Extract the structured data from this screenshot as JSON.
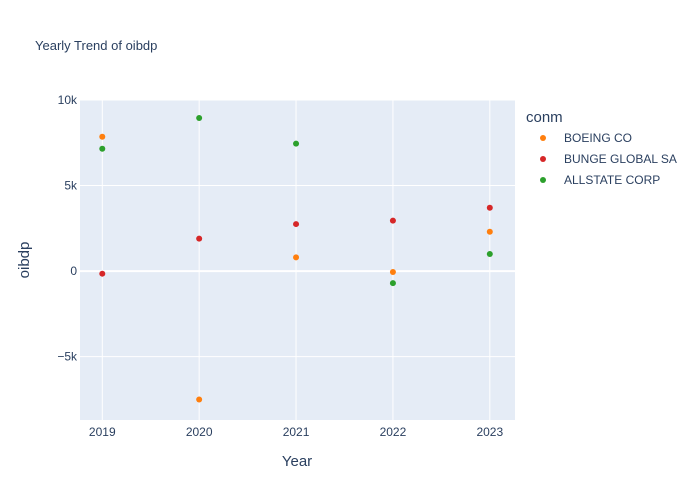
{
  "chart_data": {
    "type": "scatter",
    "title": "Yearly Trend of oibdp",
    "xlabel": "Year",
    "ylabel": "oibdp",
    "x": [
      "2019",
      "2020",
      "2021",
      "2022",
      "2023"
    ],
    "xlim": [
      2018.77,
      2023.26
    ],
    "ylim": [
      -8700,
      10000
    ],
    "yticks": [
      {
        "value": 10000,
        "label": "10k"
      },
      {
        "value": 5000,
        "label": "5k"
      },
      {
        "value": 0,
        "label": "0"
      },
      {
        "value": -5000,
        "label": "−5k"
      }
    ],
    "grid": true,
    "legend": {
      "title": "conm",
      "position": "right"
    },
    "series": [
      {
        "name": "BOEING CO",
        "color": "#ff7f0e",
        "values": [
          7850,
          -7500,
          800,
          -50,
          2300
        ]
      },
      {
        "name": "BUNGE GLOBAL SA",
        "color": "#d62728",
        "values": [
          -150,
          1900,
          2750,
          2950,
          3700
        ]
      },
      {
        "name": "ALLSTATE CORP",
        "color": "#2ca02c",
        "values": [
          7150,
          8950,
          7450,
          -700,
          1000
        ]
      }
    ]
  }
}
